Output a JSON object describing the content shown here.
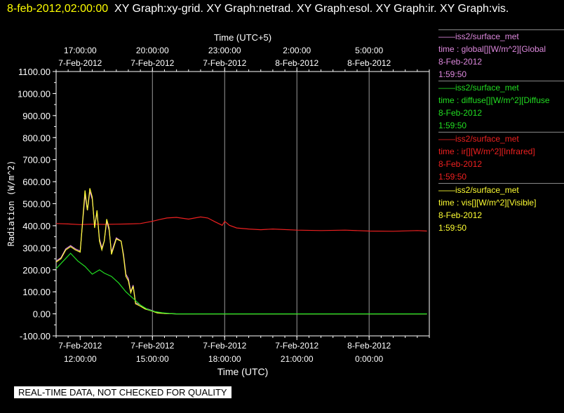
{
  "header": {
    "timestamp": "8-feb-2012,02:00:00",
    "graphs_text": "XY Graph:xy-grid.  XY Graph:netrad.  XY Graph:esol.  XY Graph:ir.  XY Graph:vis."
  },
  "footer": {
    "notice": "REAL-TIME DATA, NOT CHECKED FOR QUALITY"
  },
  "legend": [
    {
      "source": "iss2/surface_met",
      "field": "time : global[][W/m^2][Global",
      "date": "8-Feb-2012",
      "time": "1:59:50",
      "color": "#dd88dd"
    },
    {
      "source": "iss2/surface_met",
      "field": "time : diffuse[][W/m^2][Diffuse",
      "date": "8-Feb-2012",
      "time": "1:59:50",
      "color": "#22dd22"
    },
    {
      "source": "iss2/surface_met",
      "field": "time : ir[][W/m^2][Infrared]",
      "date": "8-Feb-2012",
      "time": "1:59:50",
      "color": "#ee2020"
    },
    {
      "source": "iss2/surface_met",
      "field": "time : vis[][W/m^2][Visible]",
      "date": "8-Feb-2012",
      "time": "1:59:50",
      "color": "#ffff33"
    }
  ],
  "chart_data": {
    "type": "line",
    "ylabel": "Radiation (W/m^2)",
    "xlabel_bottom": "Time (UTC)",
    "xlabel_top": "Time (UTC+5)",
    "xlim_hours": [
      11.0,
      26.5
    ],
    "ylim": [
      -100,
      1100
    ],
    "yticks": [
      -100,
      0,
      100,
      200,
      300,
      400,
      500,
      600,
      700,
      800,
      900,
      1000,
      1100
    ],
    "ytick_labels": [
      "-100.00",
      "0.00",
      "100.00",
      "200.00",
      "300.00",
      "400.00",
      "500.00",
      "600.00",
      "700.00",
      "800.00",
      "900.00",
      "1000.00",
      "1100.00"
    ],
    "bottom_ticks": [
      {
        "hour": 12,
        "date": "7-Feb-2012",
        "time": "12:00:00"
      },
      {
        "hour": 15,
        "date": "7-Feb-2012",
        "time": "15:00:00"
      },
      {
        "hour": 18,
        "date": "7-Feb-2012",
        "time": "18:00:00"
      },
      {
        "hour": 21,
        "date": "7-Feb-2012",
        "time": "21:00:00"
      },
      {
        "hour": 24,
        "date": "8-Feb-2012",
        "time": "0:00:00"
      }
    ],
    "top_ticks": [
      {
        "hour": 12,
        "time": "17:00:00",
        "date": "7-Feb-2012"
      },
      {
        "hour": 15,
        "time": "20:00:00",
        "date": "7-Feb-2012"
      },
      {
        "hour": 18,
        "time": "23:00:00",
        "date": "7-Feb-2012"
      },
      {
        "hour": 21,
        "time": "2:00:00",
        "date": "8-Feb-2012"
      },
      {
        "hour": 24,
        "time": "5:00:00",
        "date": "8-Feb-2012"
      }
    ],
    "series": [
      {
        "color": "#ee2020",
        "x": [
          11.0,
          11.5,
          12.0,
          12.5,
          13.0,
          13.5,
          14.0,
          14.5,
          15.0,
          15.3,
          15.6,
          16.0,
          16.5,
          17.0,
          17.3,
          17.6,
          17.9,
          18.0,
          18.2,
          18.5,
          19.0,
          19.5,
          20.0,
          21.0,
          22.0,
          23.0,
          24.0,
          25.0,
          26.0,
          26.4
        ],
        "y": [
          410,
          408,
          405,
          407,
          406,
          407,
          408,
          410,
          420,
          428,
          435,
          438,
          430,
          440,
          435,
          418,
          402,
          420,
          402,
          390,
          385,
          382,
          385,
          380,
          378,
          380,
          376,
          375,
          378,
          376
        ]
      },
      {
        "color": "#dd88dd",
        "x": [
          11.0,
          11.2,
          11.4,
          11.6,
          11.8,
          12.0,
          12.2,
          12.3,
          12.4,
          12.5,
          12.6,
          12.7,
          12.8,
          12.9,
          13.0,
          13.1,
          13.2,
          13.3,
          13.5,
          13.7,
          13.8,
          13.9,
          14.0,
          14.1,
          14.2,
          14.3,
          14.5,
          14.7,
          15.0,
          15.2,
          15.5,
          16.0,
          18.0,
          20.0,
          22.0,
          24.0,
          26.4
        ],
        "y": [
          240,
          255,
          295,
          310,
          295,
          285,
          540,
          470,
          555,
          520,
          400,
          460,
          340,
          300,
          330,
          420,
          380,
          280,
          345,
          330,
          270,
          180,
          160,
          100,
          130,
          50,
          40,
          25,
          15,
          5,
          2,
          0,
          0,
          0,
          0,
          0,
          0
        ]
      },
      {
        "color": "#ffff33",
        "x": [
          11.0,
          11.2,
          11.4,
          11.6,
          11.8,
          12.0,
          12.2,
          12.3,
          12.4,
          12.5,
          12.6,
          12.7,
          12.8,
          12.9,
          13.0,
          13.1,
          13.2,
          13.3,
          13.5,
          13.7,
          13.8,
          13.9,
          14.0,
          14.1,
          14.2,
          14.3,
          14.5,
          14.7,
          15.0,
          15.2,
          15.5,
          16.0,
          18.0,
          20.0,
          22.0,
          24.0,
          26.4
        ],
        "y": [
          235,
          250,
          290,
          305,
          290,
          280,
          560,
          470,
          570,
          530,
          390,
          470,
          330,
          290,
          330,
          430,
          390,
          270,
          340,
          330,
          260,
          170,
          150,
          95,
          125,
          45,
          35,
          22,
          12,
          4,
          2,
          0,
          0,
          0,
          0,
          0,
          0
        ]
      },
      {
        "color": "#22dd22",
        "x": [
          11.0,
          11.3,
          11.6,
          11.9,
          12.2,
          12.5,
          12.8,
          13.0,
          13.3,
          13.6,
          13.9,
          14.2,
          14.5,
          14.8,
          15.1,
          15.4,
          15.7,
          16.0,
          18.0,
          20.0,
          22.0,
          24.0,
          26.4
        ],
        "y": [
          205,
          240,
          275,
          240,
          215,
          180,
          200,
          185,
          170,
          140,
          100,
          70,
          40,
          20,
          10,
          5,
          2,
          0,
          0,
          0,
          0,
          0,
          0
        ]
      }
    ]
  }
}
